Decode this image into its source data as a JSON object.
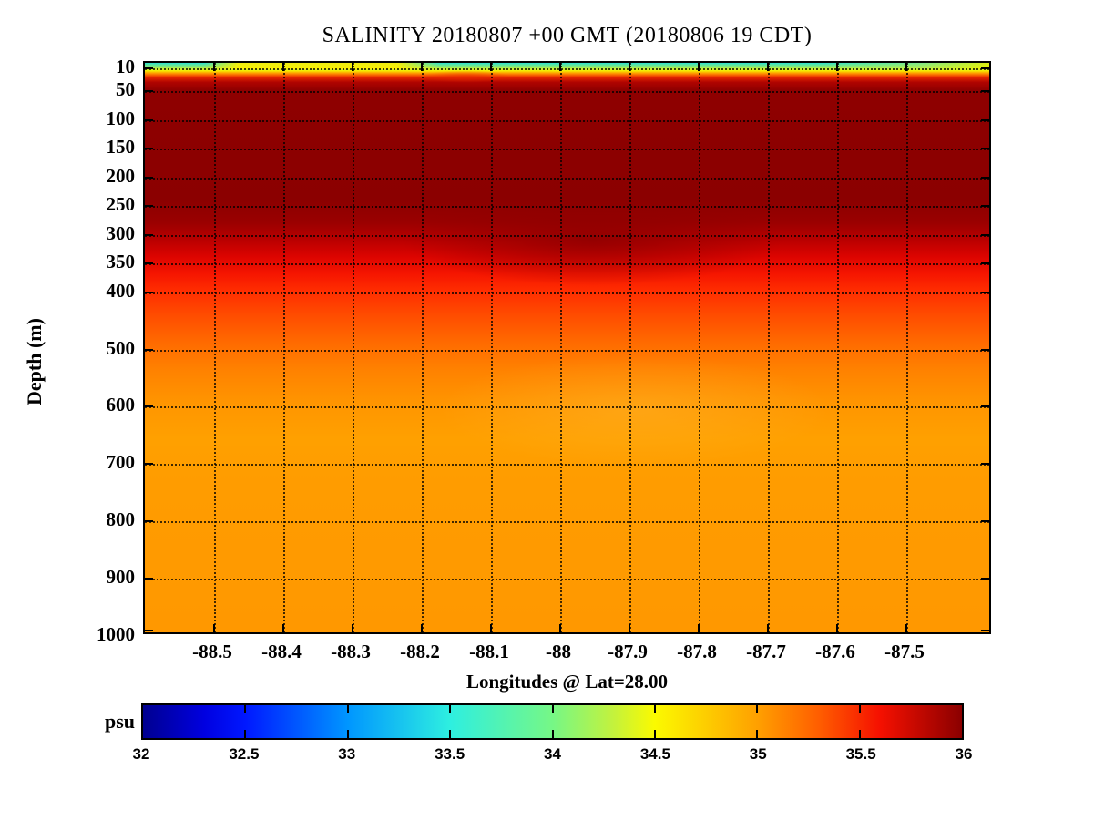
{
  "chart_data": {
    "type": "heatmap",
    "title": "SALINITY 20180807 +00 GMT (20180806 19 CDT)",
    "xlabel": "Longitudes @ Lat=28.00",
    "ylabel": "Depth (m)",
    "colorbar_label": "psu",
    "colormap": "jet",
    "grid": "dotted",
    "y_axis_inverted": true,
    "x_range": [
      -88.6,
      -87.375
    ],
    "y_range_m": [
      0,
      1000
    ],
    "value_range_psu": [
      32,
      36
    ],
    "x_ticks": [
      -88.5,
      -88.4,
      -88.3,
      -88.2,
      -88.1,
      -88,
      -87.9,
      -87.8,
      -87.7,
      -87.6,
      -87.5
    ],
    "x_tick_labels": [
      "-88.5",
      "-88.4",
      "-88.3",
      "-88.2",
      "-88.1",
      "-88",
      "-87.9",
      "-87.8",
      "-87.7",
      "-87.6",
      "-87.5"
    ],
    "y_ticks": [
      10,
      50,
      100,
      150,
      200,
      250,
      300,
      350,
      400,
      500,
      600,
      700,
      800,
      900,
      1000
    ],
    "y_gridline_ticks": [
      10,
      50,
      100,
      150,
      200,
      250,
      300,
      350,
      400,
      500,
      600,
      700,
      800,
      900
    ],
    "colorbar_ticks": [
      32,
      32.5,
      33,
      33.5,
      34,
      34.5,
      35,
      35.5,
      36
    ],
    "colorbar_tick_labels": [
      "32",
      "32.5",
      "33",
      "33.5",
      "34",
      "34.5",
      "35",
      "35.5",
      "36"
    ],
    "colorbar_stops": [
      {
        "value": 32.0,
        "color": "#000090"
      },
      {
        "value": 32.3,
        "color": "#0000E0"
      },
      {
        "value": 32.5,
        "color": "#0018FF"
      },
      {
        "value": 33.0,
        "color": "#0096FF"
      },
      {
        "value": 33.5,
        "color": "#2EEFE0"
      },
      {
        "value": 34.0,
        "color": "#76F786"
      },
      {
        "value": 34.3,
        "color": "#C4F23C"
      },
      {
        "value": 34.5,
        "color": "#FBFA00"
      },
      {
        "value": 35.0,
        "color": "#FFA000"
      },
      {
        "value": 35.3,
        "color": "#FF5E00"
      },
      {
        "value": 35.6,
        "color": "#F51000"
      },
      {
        "value": 36.0,
        "color": "#8B0000"
      }
    ],
    "approx_profile": {
      "depth_m": [
        0,
        10,
        18,
        25,
        35,
        100,
        200,
        250,
        300,
        350,
        400,
        450,
        500,
        600,
        700,
        800,
        900,
        1000
      ],
      "salinity_psu": [
        33.6,
        33.7,
        34.6,
        35.5,
        36,
        36,
        36,
        36,
        35.9,
        35.7,
        35.5,
        35.3,
        35.2,
        35.05,
        35.0,
        34.97,
        34.95,
        34.95
      ]
    },
    "surface_layer": {
      "longitude": [
        -88.6,
        -88.5,
        -88.45,
        -88.3,
        -88.15,
        -88.0,
        -87.8,
        -87.6,
        -87.45,
        -87.38
      ],
      "salinity_psu": [
        33.6,
        33.8,
        34.5,
        34.5,
        33.7,
        33.6,
        33.6,
        33.7,
        34.2,
        34.5
      ],
      "note": "thin fresher surface band above ~20 m; salinity reaches the 36 psu maximum by ~35 m depth and stays saturated to ~250 m"
    },
    "field_colors": {
      "vertical_gradient": [
        {
          "pos": 0.0,
          "color": "#2CE0D0"
        },
        {
          "pos": 0.8,
          "color": "#9CEC60"
        },
        {
          "pos": 1.4,
          "color": "#F6EE00"
        },
        {
          "pos": 1.9,
          "color": "#FF8C00"
        },
        {
          "pos": 2.5,
          "color": "#E82800"
        },
        {
          "pos": 3.4,
          "color": "#B00400"
        },
        {
          "pos": 4.8,
          "color": "#8E0000"
        },
        {
          "pos": 24.0,
          "color": "#8B0000"
        },
        {
          "pos": 28.0,
          "color": "#9A0000"
        },
        {
          "pos": 31.0,
          "color": "#B80000"
        },
        {
          "pos": 34.0,
          "color": "#DC0400"
        },
        {
          "pos": 37.0,
          "color": "#F51500"
        },
        {
          "pos": 40.0,
          "color": "#FF2D00"
        },
        {
          "pos": 44.0,
          "color": "#FF4A00"
        },
        {
          "pos": 49.0,
          "color": "#FF6A00"
        },
        {
          "pos": 54.0,
          "color": "#FF8200"
        },
        {
          "pos": 60.0,
          "color": "#FF9600"
        },
        {
          "pos": 66.0,
          "color": "#FFA000"
        },
        {
          "pos": 74.0,
          "color": "#FF9C00"
        },
        {
          "pos": 100.0,
          "color": "#FF9800"
        }
      ],
      "surface_strip_gradient": [
        {
          "pos": 0,
          "color": "rgba(255,238,0,0)"
        },
        {
          "pos": 7,
          "color": "rgba(255,238,0,0)"
        },
        {
          "pos": 11,
          "color": "rgba(255,238,0,0.92)"
        },
        {
          "pos": 30,
          "color": "rgba(255,238,0,0.92)"
        },
        {
          "pos": 35,
          "color": "rgba(255,238,0,0)"
        },
        {
          "pos": 80,
          "color": "rgba(190,240,80,0)"
        },
        {
          "pos": 92,
          "color": "rgba(190,240,80,0.55)"
        },
        {
          "pos": 100,
          "color": "rgba(236,240,0,0.9)"
        }
      ],
      "deep_maroon_bump": "rgba(139,0,0,0.8)",
      "mid_depth_light_patch": "rgba(255,186,50,0.38)",
      "surface_notch_red": "rgba(232,40,0,0.6)"
    }
  }
}
